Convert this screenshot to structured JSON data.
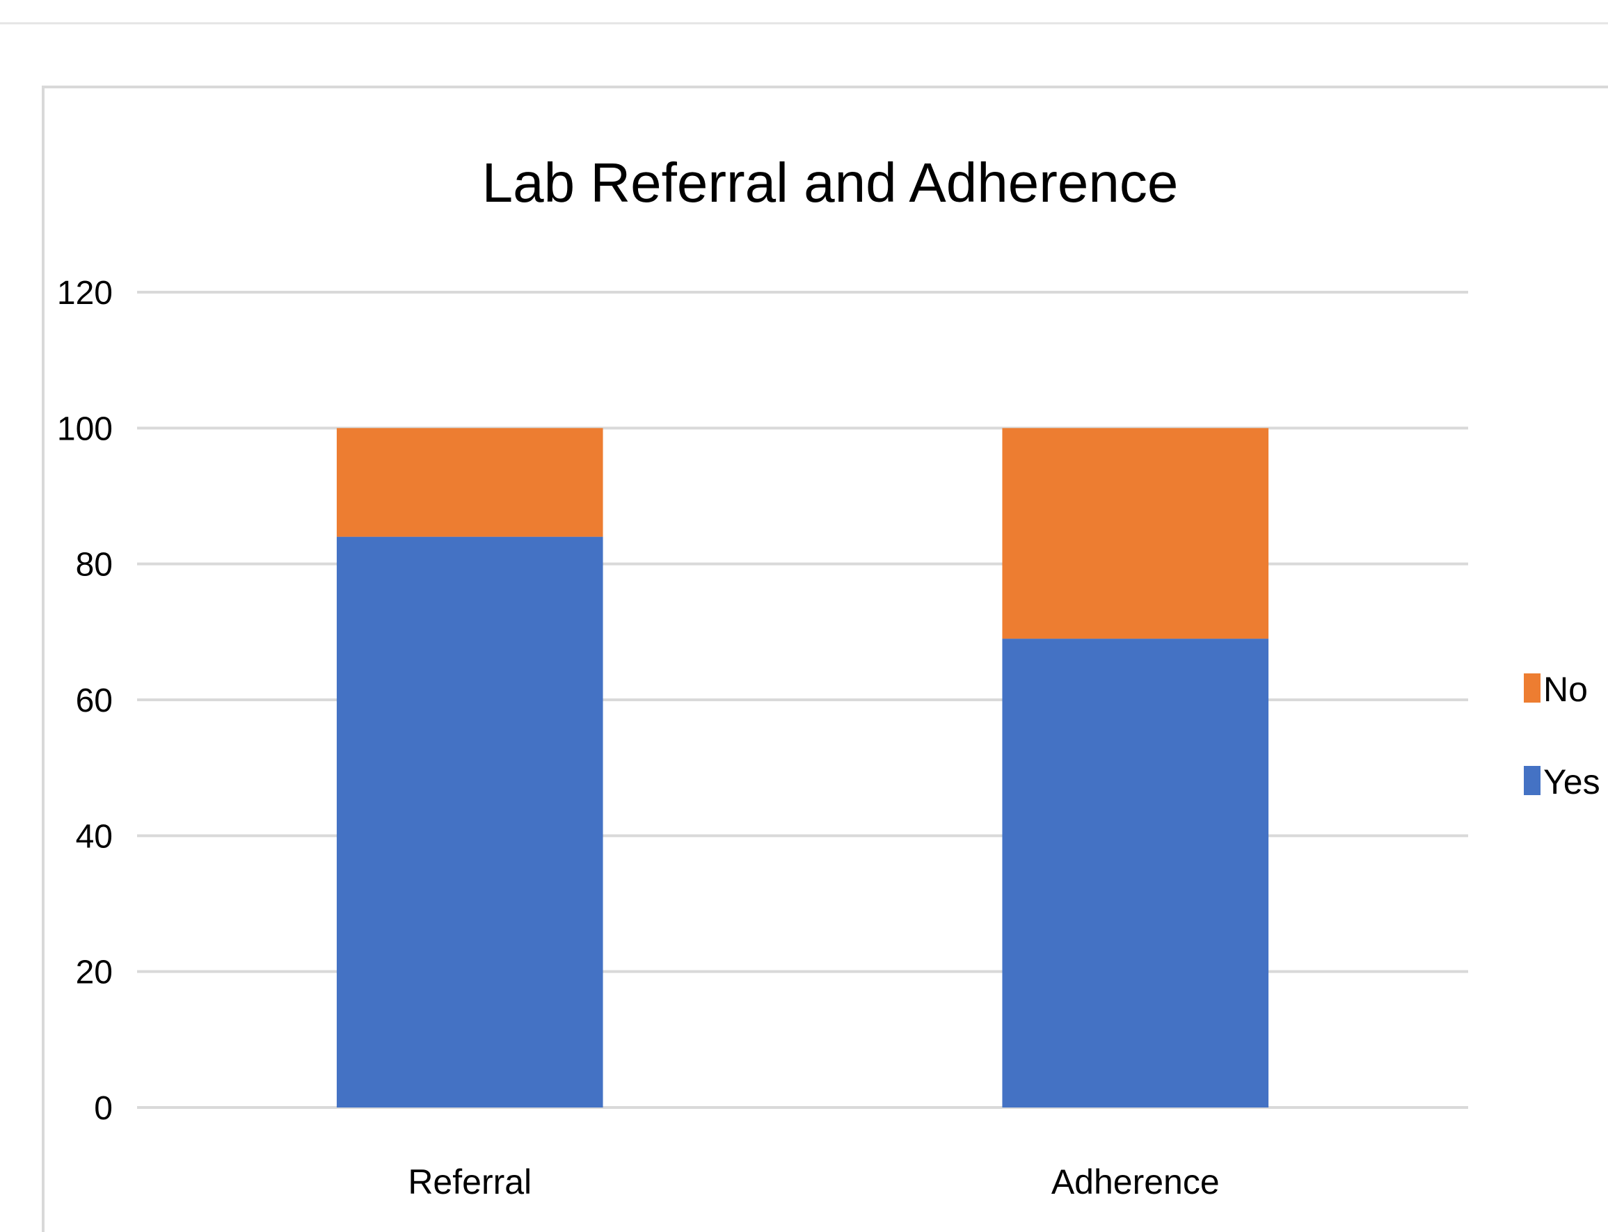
{
  "chart_data": {
    "type": "bar",
    "stacked": true,
    "title": "Lab Referral and Adherence",
    "xlabel": "",
    "ylabel": "",
    "categories": [
      "Referral",
      "Adherence"
    ],
    "series": [
      {
        "name": "Yes",
        "color": "#4472C4",
        "values": [
          84,
          69
        ]
      },
      {
        "name": "No",
        "color": "#ED7D31",
        "values": [
          16,
          31
        ]
      }
    ],
    "ylim": [
      0,
      120
    ],
    "yticks": [
      0,
      20,
      40,
      60,
      80,
      100,
      120
    ],
    "ytick_labels": [
      "0",
      "20",
      "40",
      "60",
      "80",
      "100",
      "120"
    ],
    "grid": true,
    "legend": {
      "position": "right",
      "order": [
        "No",
        "Yes"
      ]
    }
  }
}
